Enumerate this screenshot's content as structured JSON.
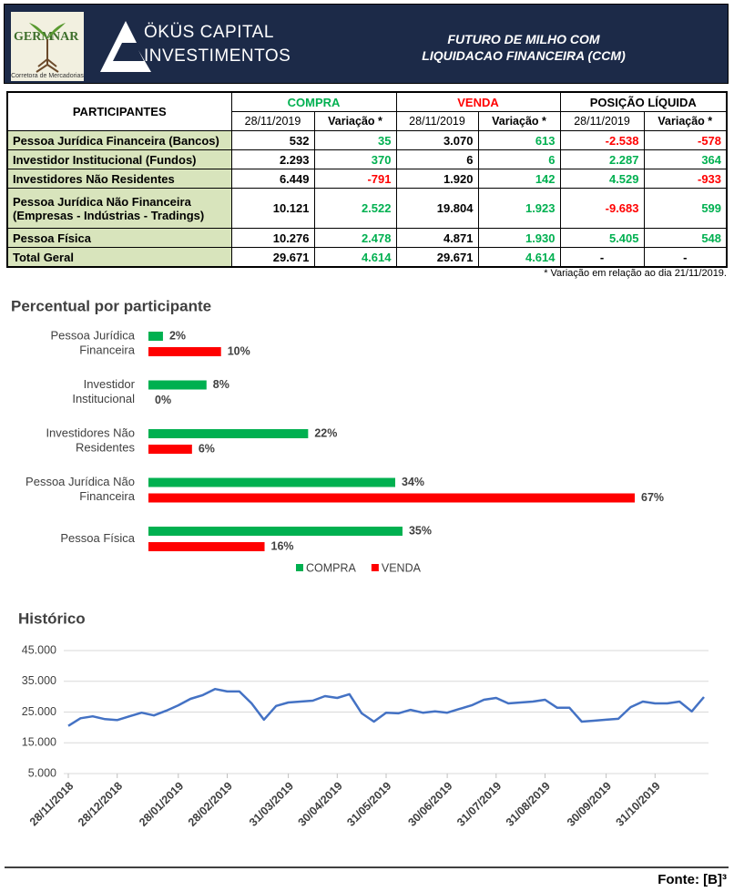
{
  "header": {
    "logo_text": [
      "GERM",
      "NAR"
    ],
    "logo_subtitle": "Corretora de Mercadorias",
    "company": [
      "ÖKÜS CAPITAL",
      "INVESTIMENTOS"
    ],
    "title": [
      "FUTURO DE MILHO COM",
      "LIQUIDACAO FINANCEIRA (CCM)"
    ]
  },
  "table": {
    "group_headers": [
      "PARTICIPANTES",
      "COMPRA",
      "VENDA",
      "POSIÇÃO LÍQUIDA"
    ],
    "sub_headers": [
      "28/11/2019",
      "Variação *",
      "28/11/2019",
      "Variação *",
      "28/11/2019",
      "Variação *"
    ],
    "rows": [
      [
        "Pessoa Jurídica Financeira (Bancos)",
        "532",
        "35",
        "3.070",
        "613",
        "-2.538",
        "-578"
      ],
      [
        "Investidor Institucional (Fundos)",
        "2.293",
        "370",
        "6",
        "6",
        "2.287",
        "364"
      ],
      [
        "Investidores Não Residentes",
        "6.449",
        "-791",
        "1.920",
        "142",
        "4.529",
        "-933"
      ],
      [
        "Pessoa Jurídica Não Financeira\n(Empresas - Indústrias - Tradings)",
        "10.121",
        "2.522",
        "19.804",
        "1.923",
        "-9.683",
        "599"
      ],
      [
        "Pessoa Física",
        "10.276",
        "2.478",
        "4.871",
        "1.930",
        "5.405",
        "548"
      ],
      [
        "Total Geral",
        "29.671",
        "4.614",
        "29.671",
        "4.614",
        "-",
        "-"
      ]
    ]
  },
  "footnote": "* Variação em relação ao dia 21/11/2019.",
  "chart_data": [
    {
      "type": "bar",
      "orientation": "horizontal",
      "title": "Percentual por participante",
      "categories": [
        "Pessoa Jurídica\nFinanceira",
        "Investidor\nInstitucional",
        "Investidores Não\nResidentes",
        "Pessoa Jurídica Não\nFinanceira",
        "Pessoa Física"
      ],
      "series": [
        {
          "name": "COMPRA",
          "color": "#00b050",
          "values": [
            2,
            8,
            22,
            34,
            35
          ],
          "value_labels": [
            "2%",
            "8%",
            "22%",
            "34%",
            "35%"
          ]
        },
        {
          "name": "VENDA",
          "color": "#ff0000",
          "values": [
            10,
            0,
            6,
            67,
            16
          ],
          "value_labels": [
            "10%",
            "0%",
            "6%",
            "67%",
            "16%"
          ]
        }
      ],
      "xlim": [
        0,
        68
      ],
      "legend": "bottom"
    },
    {
      "type": "line",
      "title": "Histórico",
      "color": "#4472c4",
      "categories": [
        "28/11/2018",
        null,
        null,
        null,
        "28/12/2018",
        null,
        null,
        null,
        null,
        "28/01/2019",
        null,
        null,
        null,
        "28/02/2019",
        null,
        null,
        null,
        null,
        "31/03/2019",
        null,
        null,
        null,
        "30/04/2019",
        null,
        null,
        null,
        "31/05/2019",
        null,
        null,
        null,
        null,
        "30/06/2019",
        null,
        null,
        null,
        "31/07/2019",
        null,
        null,
        null,
        "31/08/2019",
        null,
        null,
        null,
        null,
        "30/09/2019",
        null,
        null,
        null,
        "31/10/2019",
        null,
        null,
        null,
        null
      ],
      "values": [
        20500,
        23000,
        23600,
        22700,
        22400,
        23600,
        24800,
        23900,
        25400,
        27200,
        29300,
        30500,
        32500,
        31700,
        31700,
        27800,
        22500,
        27000,
        28100,
        28400,
        28700,
        30200,
        29600,
        30800,
        24600,
        21900,
        24800,
        24600,
        25700,
        24800,
        25200,
        24800,
        26000,
        27200,
        29000,
        29600,
        27800,
        28100,
        28400,
        29000,
        26400,
        26400,
        21900,
        22200,
        22500,
        22800,
        26600,
        28400,
        27800,
        27800,
        28400,
        25200,
        29900
      ],
      "ylim": [
        5000,
        45000
      ],
      "yticks": [
        {
          "value": 5000,
          "label": "5.000"
        },
        {
          "value": 15000,
          "label": "15.000"
        },
        {
          "value": 25000,
          "label": "25.000"
        },
        {
          "value": 35000,
          "label": "35.000"
        },
        {
          "value": 45000,
          "label": "45.000"
        }
      ],
      "grid": true
    }
  ],
  "source": "Fonte: [B]³"
}
